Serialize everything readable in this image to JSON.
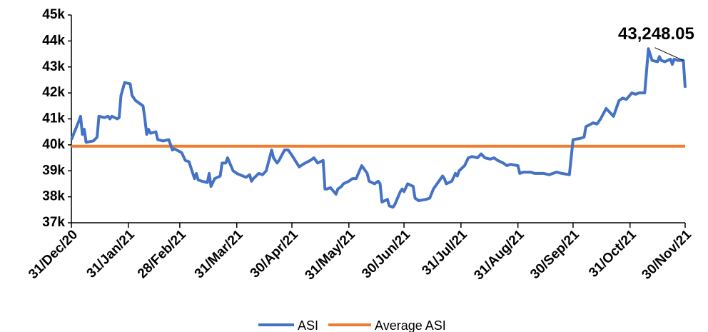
{
  "chart_data": {
    "type": "line",
    "x": [
      "2020-12-31",
      "2021-01-04",
      "2021-01-05",
      "2021-01-06",
      "2021-01-07",
      "2021-01-08",
      "2021-01-12",
      "2021-01-14",
      "2021-01-15",
      "2021-01-18",
      "2021-01-20",
      "2021-01-21",
      "2021-01-22",
      "2021-01-25",
      "2021-01-26",
      "2021-01-27",
      "2021-01-29",
      "2021-02-01",
      "2021-02-02",
      "2021-02-04",
      "2021-02-08",
      "2021-02-09",
      "2021-02-10",
      "2021-02-11",
      "2021-02-12",
      "2021-02-15",
      "2021-02-16",
      "2021-02-19",
      "2021-02-22",
      "2021-02-23",
      "2021-02-24",
      "2021-02-25",
      "2021-03-01",
      "2021-03-03",
      "2021-03-05",
      "2021-03-08",
      "2021-03-09",
      "2021-03-10",
      "2021-03-12",
      "2021-03-15",
      "2021-03-16",
      "2021-03-17",
      "2021-03-19",
      "2021-03-22",
      "2021-03-23",
      "2021-03-25",
      "2021-03-26",
      "2021-03-29",
      "2021-03-31",
      "2021-04-05",
      "2021-04-07",
      "2021-04-08",
      "2021-04-09",
      "2021-04-12",
      "2021-04-14",
      "2021-04-16",
      "2021-04-19",
      "2021-04-20",
      "2021-04-22",
      "2021-04-23",
      "2021-04-26",
      "2021-04-28",
      "2021-04-30",
      "2021-05-04",
      "2021-05-06",
      "2021-05-10",
      "2021-05-12",
      "2021-05-14",
      "2021-05-17",
      "2021-05-18",
      "2021-05-19",
      "2021-05-21",
      "2021-05-24",
      "2021-05-25",
      "2021-05-27",
      "2021-05-28",
      "2021-05-31",
      "2021-06-02",
      "2021-06-04",
      "2021-06-07",
      "2021-06-08",
      "2021-06-10",
      "2021-06-11",
      "2021-06-14",
      "2021-06-16",
      "2021-06-17",
      "2021-06-18",
      "2021-06-21",
      "2021-06-22",
      "2021-06-24",
      "2021-06-25",
      "2021-06-28",
      "2021-06-29",
      "2021-06-30",
      "2021-07-02",
      "2021-07-05",
      "2021-07-06",
      "2021-07-08",
      "2021-07-12",
      "2021-07-14",
      "2021-07-16",
      "2021-07-19",
      "2021-07-21",
      "2021-07-22",
      "2021-07-23",
      "2021-07-26",
      "2021-07-28",
      "2021-07-29",
      "2021-07-30",
      "2021-08-02",
      "2021-08-04",
      "2021-08-06",
      "2021-08-09",
      "2021-08-11",
      "2021-08-13",
      "2021-08-16",
      "2021-08-18",
      "2021-08-20",
      "2021-08-23",
      "2021-08-25",
      "2021-08-27",
      "2021-08-31",
      "2021-09-01",
      "2021-09-03",
      "2021-09-07",
      "2021-09-09",
      "2021-09-14",
      "2021-09-17",
      "2021-09-21",
      "2021-09-24",
      "2021-09-28",
      "2021-09-30",
      "2021-10-04",
      "2021-10-06",
      "2021-10-07",
      "2021-10-11",
      "2021-10-13",
      "2021-10-15",
      "2021-10-18",
      "2021-10-20",
      "2021-10-22",
      "2021-10-25",
      "2021-10-27",
      "2021-10-29",
      "2021-11-01",
      "2021-11-03",
      "2021-11-05",
      "2021-11-08",
      "2021-11-10",
      "2021-11-12",
      "2021-11-15",
      "2021-11-16",
      "2021-11-17",
      "2021-11-19",
      "2021-11-22",
      "2021-11-23",
      "2021-11-24",
      "2021-11-26",
      "2021-11-29",
      "2021-11-30"
    ],
    "series": [
      {
        "name": "ASI",
        "color": "#4472c4",
        "values": [
          40200,
          40900,
          41100,
          40400,
          40600,
          40100,
          40150,
          40300,
          41100,
          41050,
          41100,
          41000,
          41100,
          41000,
          41050,
          41900,
          42400,
          42350,
          41900,
          41700,
          41500,
          41000,
          40400,
          40600,
          40450,
          40500,
          40200,
          40150,
          40200,
          40000,
          39800,
          39850,
          39700,
          39400,
          39350,
          38700,
          38900,
          38650,
          38600,
          38550,
          38900,
          38400,
          38700,
          38800,
          39300,
          39300,
          39500,
          39000,
          38900,
          38750,
          38850,
          38600,
          38700,
          38900,
          38850,
          39000,
          39800,
          39500,
          39300,
          39400,
          39800,
          39800,
          39600,
          39150,
          39250,
          39400,
          39500,
          39300,
          39400,
          38300,
          38300,
          38350,
          38100,
          38300,
          38400,
          38500,
          38600,
          38700,
          38700,
          39200,
          39100,
          38900,
          38600,
          38500,
          38600,
          38500,
          37800,
          37900,
          37650,
          37600,
          37700,
          38200,
          38300,
          38200,
          38500,
          38400,
          37950,
          37850,
          37900,
          37950,
          38300,
          38600,
          38800,
          38700,
          38500,
          38600,
          38900,
          38800,
          39000,
          39200,
          39500,
          39550,
          39500,
          39650,
          39500,
          39450,
          39500,
          39400,
          39300,
          39200,
          39250,
          39200,
          38900,
          38950,
          38950,
          38900,
          38900,
          38850,
          38950,
          38900,
          38850,
          40200,
          40250,
          40300,
          40700,
          40850,
          40800,
          41000,
          41400,
          41250,
          41100,
          41700,
          41800,
          41750,
          42000,
          41950,
          42000,
          42000,
          43700,
          43250,
          43200,
          43400,
          43250,
          43200,
          43300,
          43100,
          43300,
          43250,
          43250,
          42200
        ]
      }
    ],
    "reference_line": {
      "name": "Average ASI",
      "color": "#ed7d31",
      "value": 39950
    },
    "annotation": {
      "label": "43,248.05",
      "value": 43248.05,
      "x": "2021-11-29"
    },
    "xlim": [
      "2020-12-31",
      "2021-11-30"
    ],
    "xticks": [
      {
        "value": "2020-12-31",
        "label": "31/Dec/20"
      },
      {
        "value": "2021-01-31",
        "label": "31/Jan/21"
      },
      {
        "value": "2021-02-28",
        "label": "28/Feb/21"
      },
      {
        "value": "2021-03-31",
        "label": "31/Mar/21"
      },
      {
        "value": "2021-04-30",
        "label": "30/Apr/21"
      },
      {
        "value": "2021-05-31",
        "label": "31/May/21"
      },
      {
        "value": "2021-06-30",
        "label": "30/Jun/21"
      },
      {
        "value": "2021-07-31",
        "label": "31/Jul/21"
      },
      {
        "value": "2021-08-31",
        "label": "31/Aug/21"
      },
      {
        "value": "2021-09-30",
        "label": "30/Sep/21"
      },
      {
        "value": "2021-10-31",
        "label": "31/Oct/21"
      },
      {
        "value": "2021-11-30",
        "label": "30/Nov/21"
      }
    ],
    "ylim": [
      37000,
      45000
    ],
    "yticks": [
      {
        "value": 37000,
        "label": "37k"
      },
      {
        "value": 38000,
        "label": "38k"
      },
      {
        "value": 39000,
        "label": "39k"
      },
      {
        "value": 40000,
        "label": "40k"
      },
      {
        "value": 41000,
        "label": "41k"
      },
      {
        "value": 42000,
        "label": "42k"
      },
      {
        "value": 43000,
        "label": "43k"
      },
      {
        "value": 44000,
        "label": "44k"
      },
      {
        "value": 45000,
        "label": "45k"
      }
    ],
    "legend": "bottom"
  }
}
